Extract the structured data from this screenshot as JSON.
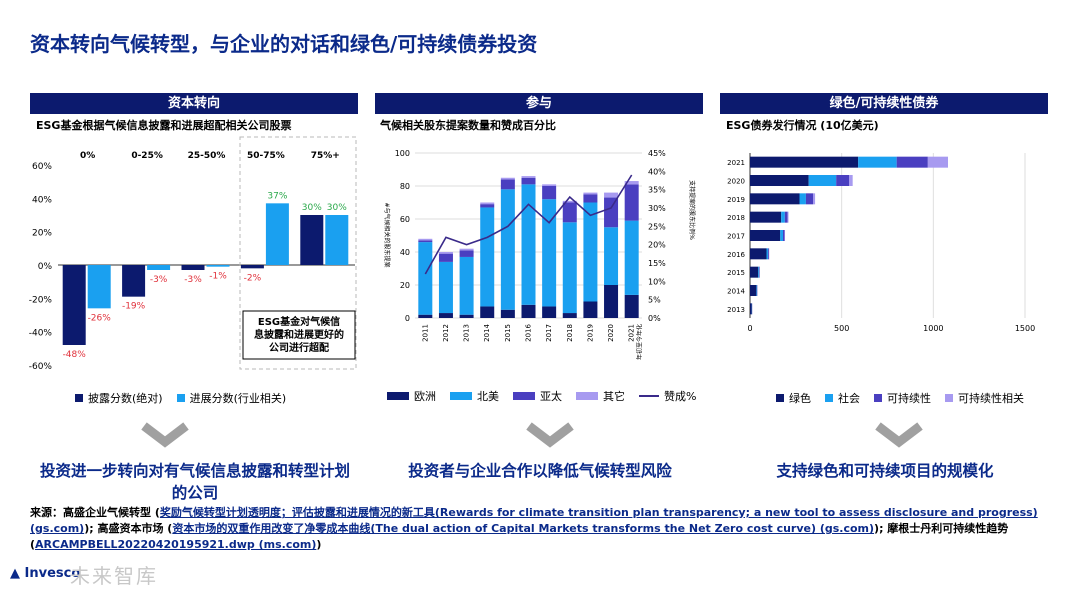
{
  "page": {
    "title": "资本转向气候转型，与企业的对话和绿色/可持续债券投资",
    "logo_text": "Invesco",
    "watermark": "未来智库"
  },
  "panels": [
    {
      "header": "资本转向",
      "subtitle": "ESG基金根据气候信息披露和进展超配相关公司股票",
      "conclusion": "投资进一步转向对有气候信息披露和转型计划的公司"
    },
    {
      "header": "参与",
      "subtitle": "气候相关股东提案数量和赞成百分比",
      "conclusion": "投资者与企业合作以降低气候转型风险"
    },
    {
      "header": "绿色/可持续性债券",
      "subtitle": "ESG债券发行情况 (10亿美元)",
      "conclusion": "支持绿色和可持续项目的规模化"
    }
  ],
  "chart_data": [
    {
      "type": "bar",
      "title": "ESG基金根据气候信息披露和进展超配相关公司股票",
      "categories": [
        "0%",
        "0-25%",
        "25-50%",
        "50-75%",
        "75%+"
      ],
      "series": [
        {
          "name": "披露分数(绝对)",
          "values": [
            -48,
            -19,
            -3,
            -2,
            30
          ],
          "color": "#0c1a6e"
        },
        {
          "name": "进展分数(行业相关)",
          "values": [
            -26,
            -3,
            -1,
            37,
            30
          ],
          "color": "#1aa0f0"
        }
      ],
      "data_labels": [
        [
          "-48%",
          "-19%",
          "-3%",
          "-2%",
          "30%"
        ],
        [
          "-26%",
          "-3%",
          "-1%",
          "37%",
          "30%"
        ]
      ],
      "ylim": [
        -60,
        60
      ],
      "yticks": [
        -60,
        -40,
        -20,
        0,
        20,
        40,
        60
      ],
      "ytick_labels": [
        "-60%",
        "-40%",
        "-20%",
        "0%",
        "20%",
        "40%",
        "60%"
      ],
      "annotation": "ESG基金对气候信息披露和进展更好的公司进行超配",
      "colors": {
        "negative_label": "#e0303a",
        "positive_label": "#2aa84a"
      }
    },
    {
      "type": "bar",
      "stacked": true,
      "title": "气候相关股东提案数量和赞成百分比",
      "categories": [
        "2011",
        "2012",
        "2013",
        "2014",
        "2015",
        "2016",
        "2017",
        "2018",
        "2019",
        "2020",
        "2021 年初至今年化"
      ],
      "series": [
        {
          "name": "欧洲",
          "values": [
            2,
            3,
            2,
            7,
            5,
            8,
            7,
            3,
            10,
            20,
            14
          ],
          "color": "#0c1a6e"
        },
        {
          "name": "北美",
          "values": [
            44,
            31,
            35,
            60,
            73,
            73,
            65,
            55,
            60,
            35,
            45
          ],
          "color": "#1aa0f0"
        },
        {
          "name": "亚太",
          "values": [
            1,
            5,
            4,
            2,
            6,
            4,
            8,
            12,
            5,
            18,
            22
          ],
          "color": "#4a3fc0"
        },
        {
          "name": "其它",
          "values": [
            1,
            1,
            1,
            1,
            1,
            1,
            1,
            1,
            1,
            3,
            2
          ],
          "color": "#a79af0"
        }
      ],
      "line_series": {
        "name": "赞成%",
        "values": [
          12,
          22,
          20,
          22,
          25,
          31,
          26,
          33,
          28,
          30,
          39
        ],
        "color": "#3a2a8a"
      },
      "ylim_left": [
        0,
        100
      ],
      "yticks_left": [
        0,
        20,
        40,
        60,
        80,
        100
      ],
      "ylim_right": [
        0,
        45
      ],
      "yticks_right": [
        "0%",
        "5%",
        "10%",
        "15%",
        "20%",
        "25%",
        "30%",
        "35%",
        "40%",
        "45%"
      ],
      "ylabel_left": "#与气候相关的股东提案",
      "ylabel_right": "支持提案的股东比例%"
    },
    {
      "type": "bar",
      "orientation": "horizontal",
      "stacked": true,
      "title": "ESG债券发行情况 (10亿美元)",
      "categories": [
        "2021",
        "2020",
        "2019",
        "2018",
        "2017",
        "2016",
        "2015",
        "2014",
        "2013"
      ],
      "series": [
        {
          "name": "绿色",
          "values": [
            590,
            320,
            270,
            170,
            165,
            90,
            45,
            35,
            10
          ],
          "color": "#0c1a6e"
        },
        {
          "name": "社会",
          "values": [
            210,
            150,
            35,
            20,
            15,
            8,
            5,
            3,
            1
          ],
          "color": "#1aa0f0"
        },
        {
          "name": "可持续性",
          "values": [
            170,
            70,
            40,
            15,
            8,
            5,
            3,
            2,
            1
          ],
          "color": "#4a3fc0"
        },
        {
          "name": "可持续性相关",
          "values": [
            110,
            20,
            10,
            5,
            3,
            2,
            1,
            1,
            0
          ],
          "color": "#a79af0"
        }
      ],
      "xlim": [
        0,
        1500
      ],
      "xticks": [
        0,
        500,
        1000,
        1500
      ]
    }
  ]
}
